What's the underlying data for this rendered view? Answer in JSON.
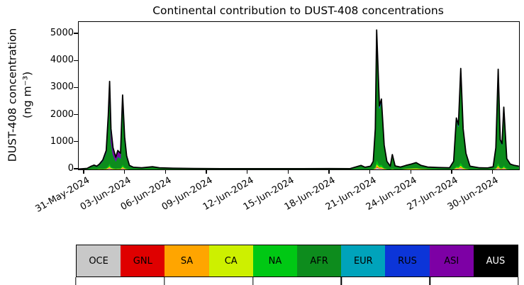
{
  "chart_data": {
    "type": "stacked_area",
    "title": "Continental contribution to DUST-408 concentrations",
    "ylabel_line1": "DUST-408 concentration",
    "ylabel_line2": "(ng m⁻³)",
    "ylim": [
      0,
      5000
    ],
    "y_ticks": [
      0,
      1000,
      2000,
      3000,
      4000,
      5000
    ],
    "x_tick_labels": [
      "31-May-2024",
      "03-Jun-2024",
      "06-Jun-2024",
      "09-Jun-2024",
      "12-Jun-2024",
      "15-Jun-2024",
      "18-Jun-2024",
      "21-Jun-2024",
      "24-Jun-2024",
      "27-Jun-2024",
      "30-Jun-2024"
    ],
    "x_tick_days": [
      0,
      3,
      6,
      9,
      12,
      15,
      18,
      21,
      24,
      27,
      30
    ],
    "t_unit": "days since 31-May-2024",
    "t_range": [
      -0.42,
      31.9
    ],
    "grid": false,
    "legend_position": "bottom-colorbar",
    "legend_tick_every_cells": 2,
    "t": [
      -0.42,
      0.2,
      0.5,
      0.7,
      0.9,
      1.1,
      1.35,
      1.6,
      1.75,
      1.85,
      1.95,
      2.1,
      2.3,
      2.45,
      2.65,
      2.8,
      2.95,
      3.1,
      3.3,
      3.6,
      4.2,
      5.0,
      5.5,
      6.5,
      8.0,
      10.0,
      12.0,
      14.0,
      16.0,
      18.0,
      19.5,
      20.3,
      20.6,
      21.0,
      21.2,
      21.35,
      21.45,
      21.65,
      21.8,
      22.0,
      22.2,
      22.45,
      22.6,
      22.8,
      23.2,
      23.6,
      24.0,
      24.35,
      24.7,
      25.2,
      26.0,
      26.8,
      27.1,
      27.3,
      27.45,
      27.62,
      27.8,
      28.0,
      28.3,
      29.0,
      29.6,
      30.0,
      30.2,
      30.37,
      30.52,
      30.65,
      30.78,
      31.0,
      31.25,
      31.55,
      31.88
    ],
    "total": [
      15,
      40,
      120,
      160,
      120,
      200,
      350,
      700,
      2000,
      3250,
      1500,
      800,
      450,
      700,
      600,
      2750,
      1200,
      500,
      150,
      80,
      60,
      100,
      60,
      45,
      35,
      30,
      28,
      30,
      28,
      32,
      30,
      150,
      80,
      120,
      300,
      1500,
      5150,
      2350,
      2600,
      900,
      300,
      120,
      550,
      130,
      90,
      150,
      200,
      250,
      150,
      90,
      70,
      60,
      300,
      1900,
      1650,
      3730,
      1500,
      600,
      120,
      60,
      55,
      100,
      800,
      3700,
      1100,
      950,
      2300,
      400,
      200,
      150,
      120
    ],
    "peak_annotations": [
      {
        "date": "02-Jun-2024",
        "value": 3250
      },
      {
        "date": "03-Jun-2024",
        "value": 2750
      },
      {
        "date": "22-Jun-2024",
        "value": 5150
      },
      {
        "date": "28-Jun-2024",
        "value": 3730
      },
      {
        "date": "30-Jun-2024",
        "value": 3700
      }
    ],
    "series": [
      {
        "name": "OCE",
        "color": "#c8c8c8",
        "label_color": "#000000",
        "frac": 0.015
      },
      {
        "name": "GNL",
        "color": "#df0000",
        "label_color": "#000000",
        "frac": 0.004
      },
      {
        "name": "SA",
        "color": "#ffa500",
        "label_color": "#000000",
        "frac": 0.008,
        "segments": [
          {
            "from": 23.5,
            "to": 25.5,
            "frac": 0.06
          }
        ]
      },
      {
        "name": "CA",
        "color": "#cdf000",
        "label_color": "#000000",
        "frac": 0.012,
        "segments": [
          {
            "from": 0.0,
            "to": 1.2,
            "frac": 0.08
          },
          {
            "from": 3.5,
            "to": 6.0,
            "frac": 0.1
          },
          {
            "from": 23.5,
            "to": 26.0,
            "frac": 0.1
          }
        ]
      },
      {
        "name": "NA",
        "color": "#00c814",
        "label_color": "#000000",
        "frac": 0.03
      },
      {
        "name": "AFR",
        "color": "#0d8c1d",
        "label_color": "#000000",
        "remainder": true
      },
      {
        "name": "EUR",
        "color": "#00a3bb",
        "label_color": "#000000",
        "frac": 0.012,
        "segments": [
          {
            "from": 18.0,
            "to": 21.0,
            "frac": 0.08
          }
        ]
      },
      {
        "name": "RUS",
        "color": "#0c35d8",
        "label_color": "#000000",
        "frac": 0.012
      },
      {
        "name": "ASI",
        "color": "#7d00a5",
        "label_color": "#000000",
        "frac": 0.012,
        "segments": [
          {
            "from": 1.95,
            "to": 2.65,
            "frac": 0.3
          },
          {
            "from": 0.5,
            "to": 3.5,
            "frac": 0.09
          }
        ]
      },
      {
        "name": "AUS",
        "color": "#000000",
        "label_color": "#ffffff",
        "frac": 0.008
      }
    ]
  }
}
